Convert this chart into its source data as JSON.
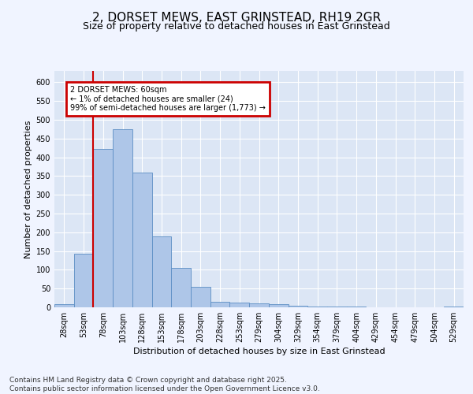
{
  "title_line1": "2, DORSET MEWS, EAST GRINSTEAD, RH19 2GR",
  "title_line2": "Size of property relative to detached houses in East Grinstead",
  "xlabel": "Distribution of detached houses by size in East Grinstead",
  "ylabel": "Number of detached properties",
  "categories": [
    "28sqm",
    "53sqm",
    "78sqm",
    "103sqm",
    "128sqm",
    "153sqm",
    "178sqm",
    "203sqm",
    "228sqm",
    "253sqm",
    "279sqm",
    "304sqm",
    "329sqm",
    "354sqm",
    "379sqm",
    "404sqm",
    "429sqm",
    "454sqm",
    "479sqm",
    "504sqm",
    "529sqm"
  ],
  "values": [
    8,
    143,
    422,
    475,
    360,
    190,
    105,
    55,
    15,
    13,
    10,
    8,
    4,
    3,
    2,
    2,
    1,
    1,
    1,
    0,
    3
  ],
  "bar_color": "#aec6e8",
  "bar_edge_color": "#5b8ec4",
  "highlight_color": "#cc0000",
  "annotation_text": "2 DORSET MEWS: 60sqm\n← 1% of detached houses are smaller (24)\n99% of semi-detached houses are larger (1,773) →",
  "annotation_box_color": "#ffffff",
  "annotation_box_edge": "#cc0000",
  "ylim": [
    0,
    630
  ],
  "yticks": [
    0,
    50,
    100,
    150,
    200,
    250,
    300,
    350,
    400,
    450,
    500,
    550,
    600
  ],
  "background_color": "#dce6f5",
  "grid_color": "#ffffff",
  "footer_text": "Contains HM Land Registry data © Crown copyright and database right 2025.\nContains public sector information licensed under the Open Government Licence v3.0.",
  "title_fontsize": 11,
  "subtitle_fontsize": 9,
  "axis_label_fontsize": 8,
  "tick_fontsize": 7,
  "footer_fontsize": 6.5
}
